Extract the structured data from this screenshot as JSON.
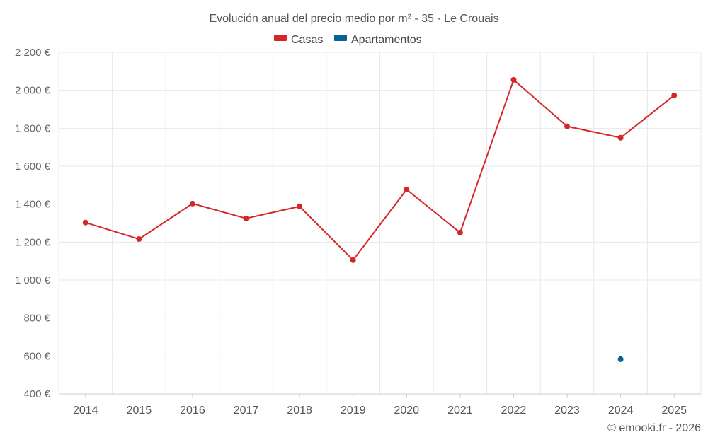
{
  "chart_data": {
    "type": "line",
    "title": "Evolución anual del precio medio por m² - 35 - Le Crouais",
    "categories": [
      "2014",
      "2015",
      "2016",
      "2017",
      "2018",
      "2019",
      "2020",
      "2021",
      "2022",
      "2023",
      "2024",
      "2025"
    ],
    "series": [
      {
        "name": "Casas",
        "color": "#d62728",
        "values": [
          1303,
          1216,
          1403,
          1325,
          1388,
          1105,
          1477,
          1250,
          2055,
          1810,
          1750,
          1973
        ]
      },
      {
        "name": "Apartamentos",
        "color": "#0b6196",
        "values": [
          null,
          null,
          null,
          null,
          null,
          null,
          null,
          null,
          null,
          null,
          583,
          null
        ]
      }
    ],
    "y_ticks": [
      "400 €",
      "600 €",
      "800 €",
      "1 000 €",
      "1 200 €",
      "1 400 €",
      "1 600 €",
      "1 800 €",
      "2 000 €",
      "2 200 €"
    ],
    "ylim": [
      400,
      2200
    ],
    "xlabel": "",
    "ylabel": "",
    "legend_position": "top-center",
    "grid": true
  },
  "credit": "© emooki.fr - 2026"
}
